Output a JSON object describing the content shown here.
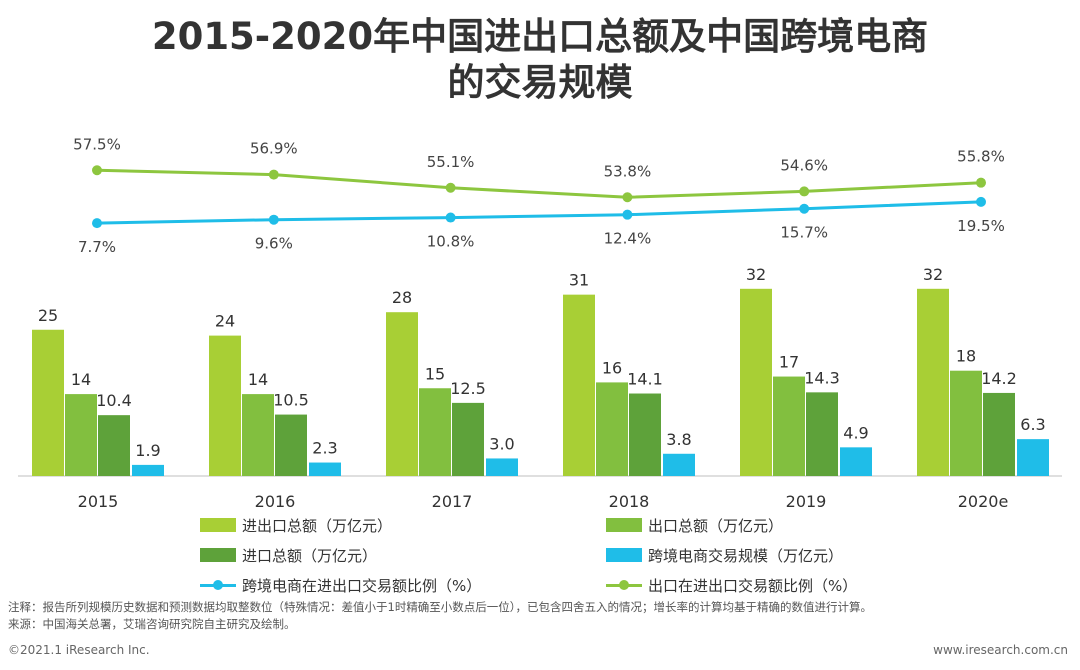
{
  "title_line1": "2015-2020年中国进出口总额及中国跨境电商",
  "title_line2": "的交易规模",
  "chart_data": {
    "type": "bar+line",
    "categories": [
      "2015",
      "2016",
      "2017",
      "2018",
      "2019",
      "2020e"
    ],
    "bar_series": [
      {
        "name": "进出口总额（万亿元）",
        "values": [
          25,
          24,
          28,
          31,
          32,
          32
        ],
        "labels": [
          "25",
          "24",
          "28",
          "31",
          "32",
          "32"
        ],
        "color": "#a8cf35"
      },
      {
        "name": "出口总额（万亿元）",
        "values": [
          14,
          14,
          15,
          16,
          17,
          18
        ],
        "labels": [
          "14",
          "14",
          "15",
          "16",
          "17",
          "18"
        ],
        "color": "#82bf3f"
      },
      {
        "name": "进口总额（万亿元）",
        "values": [
          10.4,
          10.5,
          12.5,
          14.1,
          14.3,
          14.2
        ],
        "labels": [
          "10.4",
          "10.5",
          "12.5",
          "14.1",
          "14.3",
          "14.2"
        ],
        "color": "#5ea23a"
      },
      {
        "name": "跨境电商交易规模（万亿元）",
        "values": [
          1.9,
          2.3,
          3.0,
          3.8,
          4.9,
          6.3
        ],
        "labels": [
          "1.9",
          "2.3",
          "3.0",
          "3.8",
          "4.9",
          "6.3"
        ],
        "color": "#1fbde8"
      }
    ],
    "line_series": [
      {
        "name": "出口在进出口交易额比例（%）",
        "values": [
          57.5,
          56.9,
          55.1,
          53.8,
          54.6,
          55.8
        ],
        "labels": [
          "57.5%",
          "56.9%",
          "55.1%",
          "53.8%",
          "54.6%",
          "55.8%"
        ],
        "color": "#8dc63f"
      },
      {
        "name": "跨境电商在进出口交易额比例（%）",
        "values": [
          7.7,
          9.6,
          10.8,
          12.4,
          15.7,
          19.5
        ],
        "labels": [
          "7.7%",
          "9.6%",
          "10.8%",
          "12.4%",
          "15.7%",
          "19.5%"
        ],
        "color": "#1fbde8"
      }
    ],
    "y_bar_range": [
      0,
      33
    ],
    "legend": [
      {
        "label": "进出口总额（万亿元）",
        "kind": "box",
        "color": "#a8cf35"
      },
      {
        "label": "出口总额（万亿元）",
        "kind": "box",
        "color": "#82bf3f"
      },
      {
        "label": "进口总额（万亿元）",
        "kind": "box",
        "color": "#5ea23a"
      },
      {
        "label": "跨境电商交易规模（万亿元）",
        "kind": "box",
        "color": "#1fbde8"
      },
      {
        "label": "跨境电商在进出口交易额比例（%）",
        "kind": "line",
        "color": "#1fbde8"
      },
      {
        "label": "出口在进出口交易额比例（%）",
        "kind": "line",
        "color": "#8dc63f"
      }
    ]
  },
  "note_line1": "注释：报告所列规模历史数据和预测数据均取整数位（特殊情况：差值小于1时精确至小数点后一位），已包含四舍五入的情况；增长率的计算均基于精确的数值进行计算。",
  "note_line2": "来源：中国海关总署，艾瑞咨询研究院自主研究及绘制。",
  "footer_left": "©2021.1 iResearch Inc.",
  "footer_right": "www.iresearch.com.cn"
}
